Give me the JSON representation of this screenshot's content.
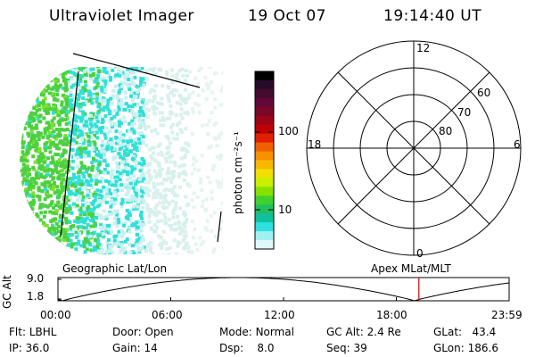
{
  "header": {
    "instrument": "Ultraviolet Imager",
    "date": "19 Oct 07",
    "time": "19:14:40 UT"
  },
  "colorbar": {
    "label": "photon cm⁻²s⁻¹",
    "ticks": [
      {
        "label": "100",
        "value": 100
      },
      {
        "label": "10",
        "value": 10
      }
    ],
    "colors": [
      "#000000",
      "#2a0a2a",
      "#440a30",
      "#600838",
      "#7a0628",
      "#9c0418",
      "#c00000",
      "#e02000",
      "#f06000",
      "#f89000",
      "#f8b800",
      "#f0e000",
      "#c8f000",
      "#88e000",
      "#40d030",
      "#20c060",
      "#10c0a0",
      "#30e0e0",
      "#a0f0f0",
      "#e0f8f8"
    ]
  },
  "polar_plot": {
    "top_label": "12",
    "left_label": "18",
    "right_label": "6",
    "bottom_label": "0",
    "ring_labels": [
      "60",
      "70",
      "80"
    ]
  },
  "timeline": {
    "ylabel": "GC Alt",
    "y_top": "9.0",
    "y_bottom": "1.8",
    "left_title": "Geographic Lat/Lon",
    "right_title": "Apex MLat/MLT",
    "x_ticks": [
      "00:00",
      "06:00",
      "12:00",
      "18:00",
      "23:59"
    ],
    "current_time_fraction": 0.8
  },
  "info": {
    "flt_label": "Flt:",
    "flt_value": "LBHL",
    "ip_label": "IP:",
    "ip_value": "36.0",
    "door_label": "Door:",
    "door_value": "Open",
    "gain_label": "Gain:",
    "gain_value": "14",
    "mode_label": "Mode:",
    "mode_value": "Normal",
    "dsp_label": "Dsp:",
    "dsp_value": "8.0",
    "gcalt_label": "GC Alt:",
    "gcalt_value": "2.4 Re",
    "seq_label": "Seq:",
    "seq_value": "39",
    "glat_label": "GLat:",
    "glat_value": "43.4",
    "glon_label": "GLon:",
    "glon_value": "186.6"
  },
  "colors": {
    "current_time_marker": "#cc0000",
    "aurora_green": "#4cd040",
    "aurora_cyan": "#30e0d8",
    "aurora_pale": "#c8f0f0"
  }
}
